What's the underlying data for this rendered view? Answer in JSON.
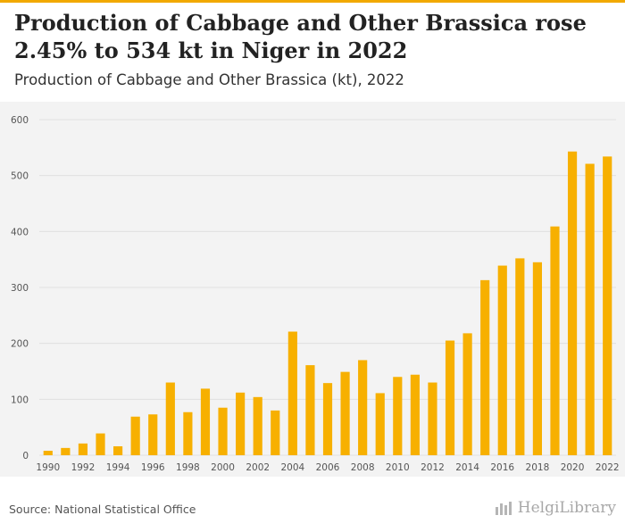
{
  "header": {
    "title": "Production of Cabbage and Other Brassica rose 2.45% to 534 kt in Niger in 2022",
    "subtitle": "Production of Cabbage and Other Brassica (kt), 2022"
  },
  "footer": {
    "source": "Source: National Statistical Office",
    "brand": "HelgiLibrary",
    "brand_icon": "bar-chart-logo-icon"
  },
  "colors": {
    "accent": "#f2a900",
    "bar": "#f7b000",
    "panel_bg": "#f3f3f3",
    "grid": "#e0e0e0"
  },
  "chart_data": {
    "type": "bar",
    "title": "Production of Cabbage and Other Brassica (kt), 2022",
    "xlabel": "",
    "ylabel": "",
    "ylim": [
      0,
      600
    ],
    "yticks": [
      "0",
      "100",
      "200",
      "300",
      "400",
      "500",
      "600"
    ],
    "grid": true,
    "categories": [
      "1990",
      "1991",
      "1992",
      "1993",
      "1994",
      "1995",
      "1996",
      "1997",
      "1998",
      "1999",
      "2000",
      "2001",
      "2002",
      "2003",
      "2004",
      "2005",
      "2006",
      "2007",
      "2008",
      "2009",
      "2010",
      "2011",
      "2012",
      "2013",
      "2014",
      "2015",
      "2016",
      "2017",
      "2018",
      "2019",
      "2020",
      "2021",
      "2022"
    ],
    "xtick_labels": [
      "1990",
      "",
      "1992",
      "",
      "1994",
      "",
      "1996",
      "",
      "1998",
      "",
      "2000",
      "",
      "2002",
      "",
      "2004",
      "",
      "2006",
      "",
      "2008",
      "",
      "2010",
      "",
      "2012",
      "",
      "2014",
      "",
      "2016",
      "",
      "2018",
      "",
      "2020",
      "",
      "2022"
    ],
    "values": [
      8,
      13,
      21,
      39,
      16,
      69,
      73,
      130,
      77,
      119,
      85,
      112,
      104,
      80,
      221,
      161,
      129,
      149,
      170,
      111,
      140,
      144,
      130,
      205,
      218,
      313,
      339,
      352,
      345,
      409,
      543,
      521,
      534
    ]
  }
}
